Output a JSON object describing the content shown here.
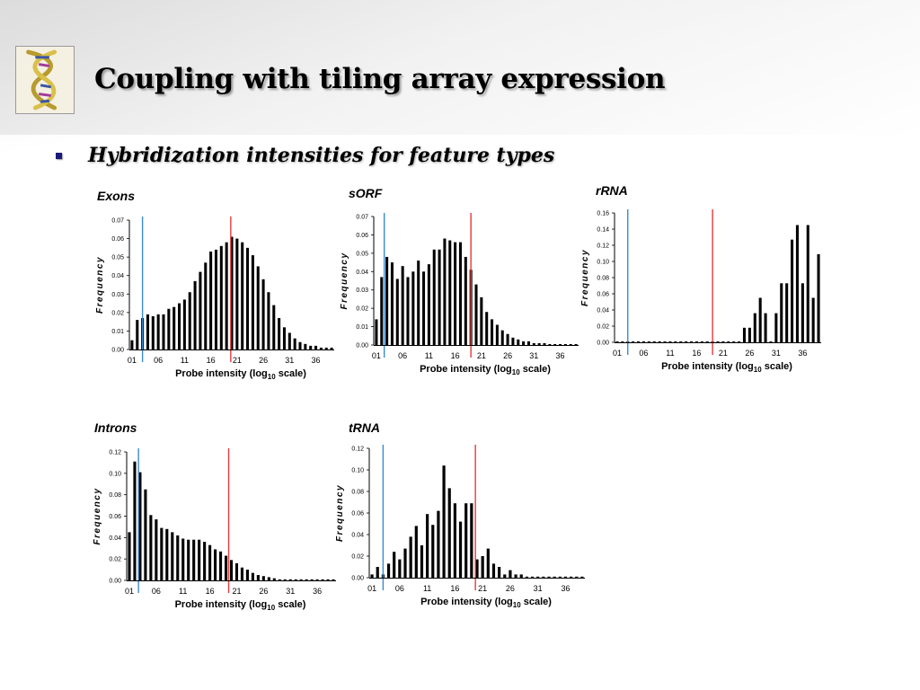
{
  "slide": {
    "title": "Coupling with tiling array expression",
    "bullet": "Hybridization intensities for feature types"
  },
  "colors": {
    "bars": "#000000",
    "blue_line": "#3a8ccf",
    "red_line": "#e53a3a",
    "bullet": "#1a1a7a"
  },
  "chart_data": [
    {
      "type": "bar",
      "title": "Exons",
      "xlabel": "Probe intensity (log10 scale)",
      "ylabel": "Frequency",
      "x_ticks": [
        "01",
        "06",
        "11",
        "16",
        "21",
        "26",
        "31",
        "36"
      ],
      "y_ticks": [
        "0.00",
        "0.01",
        "0.02",
        "0.03",
        "0.04",
        "0.05",
        "0.06",
        "0.07"
      ],
      "ylim": [
        0,
        0.07
      ],
      "blue_line_x": 3.0,
      "red_line_x": 19.8,
      "x": [
        1,
        2,
        3,
        4,
        5,
        6,
        7,
        8,
        9,
        10,
        11,
        12,
        13,
        14,
        15,
        16,
        17,
        18,
        19,
        20,
        21,
        22,
        23,
        24,
        25,
        26,
        27,
        28,
        29,
        30,
        31,
        32,
        33,
        34,
        35,
        36,
        37,
        38,
        39
      ],
      "values": [
        0.005,
        0.016,
        0.017,
        0.019,
        0.018,
        0.019,
        0.019,
        0.022,
        0.023,
        0.025,
        0.027,
        0.031,
        0.037,
        0.042,
        0.047,
        0.053,
        0.054,
        0.056,
        0.058,
        0.061,
        0.06,
        0.058,
        0.055,
        0.051,
        0.045,
        0.038,
        0.031,
        0.024,
        0.017,
        0.012,
        0.009,
        0.006,
        0.004,
        0.003,
        0.002,
        0.002,
        0.001,
        0.001,
        0.001
      ]
    },
    {
      "type": "bar",
      "title": "sORF",
      "xlabel": "Probe intensity (log10 scale)",
      "ylabel": "Frequency",
      "x_ticks": [
        "01",
        "06",
        "11",
        "16",
        "21",
        "26",
        "31",
        "36"
      ],
      "y_ticks": [
        "0.00",
        "0.01",
        "0.02",
        "0.03",
        "0.04",
        "0.05",
        "0.06",
        "0.07"
      ],
      "ylim": [
        0,
        0.07
      ],
      "blue_line_x": 2.5,
      "red_line_x": 19.0,
      "x": [
        1,
        2,
        3,
        4,
        5,
        6,
        7,
        8,
        9,
        10,
        11,
        12,
        13,
        14,
        15,
        16,
        17,
        18,
        19,
        20,
        21,
        22,
        23,
        24,
        25,
        26,
        27,
        28,
        29,
        30,
        31,
        32,
        33,
        34,
        35,
        36,
        37,
        38,
        39
      ],
      "values": [
        0.014,
        0.037,
        0.048,
        0.045,
        0.036,
        0.043,
        0.037,
        0.04,
        0.046,
        0.04,
        0.044,
        0.052,
        0.052,
        0.058,
        0.057,
        0.056,
        0.056,
        0.048,
        0.041,
        0.033,
        0.026,
        0.018,
        0.014,
        0.011,
        0.008,
        0.006,
        0.004,
        0.003,
        0.002,
        0.002,
        0.001,
        0.001,
        0.001,
        0.0005,
        0.0005,
        0.0005,
        0.0005,
        0.0005,
        0.0005
      ]
    },
    {
      "type": "bar",
      "title": "rRNA",
      "xlabel": "Probe intensity (log10 scale)",
      "ylabel": "Frequency",
      "x_ticks": [
        "01",
        "06",
        "11",
        "16",
        "21",
        "26",
        "31",
        "36"
      ],
      "y_ticks": [
        "0.00",
        "0.02",
        "0.04",
        "0.06",
        "0.08",
        "0.10",
        "0.12",
        "0.14",
        "0.16"
      ],
      "ylim": [
        0,
        0.16
      ],
      "blue_line_x": 3.0,
      "red_line_x": 19.0,
      "x": [
        1,
        2,
        3,
        4,
        5,
        6,
        7,
        8,
        9,
        10,
        11,
        12,
        13,
        14,
        15,
        16,
        17,
        18,
        19,
        20,
        21,
        22,
        23,
        24,
        25,
        26,
        27,
        28,
        29,
        30,
        31,
        32,
        33,
        34,
        35,
        36,
        37,
        38,
        39
      ],
      "values": [
        0.001,
        0.001,
        0.001,
        0.001,
        0.001,
        0.001,
        0.001,
        0.001,
        0.001,
        0.001,
        0.001,
        0.001,
        0.001,
        0.001,
        0.001,
        0.001,
        0.001,
        0.001,
        0.001,
        0.001,
        0.001,
        0.001,
        0.001,
        0.001,
        0.018,
        0.018,
        0.036,
        0.055,
        0.036,
        0.001,
        0.036,
        0.073,
        0.073,
        0.127,
        0.145,
        0.073,
        0.145,
        0.055,
        0.109
      ]
    },
    {
      "type": "bar",
      "title": "Introns",
      "xlabel": "Probe intensity (log10 scale)",
      "ylabel": "Frequency",
      "x_ticks": [
        "01",
        "06",
        "11",
        "16",
        "21",
        "26",
        "31",
        "36"
      ],
      "y_ticks": [
        "0.00",
        "0.02",
        "0.04",
        "0.06",
        "0.08",
        "0.10",
        "0.12"
      ],
      "ylim": [
        0,
        0.12
      ],
      "blue_line_x": 2.7,
      "red_line_x": 19.5,
      "x": [
        1,
        2,
        3,
        4,
        5,
        6,
        7,
        8,
        9,
        10,
        11,
        12,
        13,
        14,
        15,
        16,
        17,
        18,
        19,
        20,
        21,
        22,
        23,
        24,
        25,
        26,
        27,
        28,
        29,
        30,
        31,
        32,
        33,
        34,
        35,
        36,
        37,
        38,
        39
      ],
      "values": [
        0.045,
        0.111,
        0.101,
        0.085,
        0.061,
        0.057,
        0.049,
        0.048,
        0.045,
        0.042,
        0.039,
        0.038,
        0.038,
        0.038,
        0.036,
        0.033,
        0.029,
        0.027,
        0.023,
        0.019,
        0.016,
        0.012,
        0.01,
        0.007,
        0.005,
        0.004,
        0.003,
        0.002,
        0.001,
        0.001,
        0.001,
        0.001,
        0.001,
        0.001,
        0.001,
        0.001,
        0.001,
        0.001,
        0.001
      ]
    },
    {
      "type": "bar",
      "title": "tRNA",
      "xlabel": "Probe intensity (log10 scale)",
      "ylabel": "Frequency",
      "x_ticks": [
        "01",
        "06",
        "11",
        "16",
        "21",
        "26",
        "31",
        "36"
      ],
      "y_ticks": [
        "0.00",
        "0.02",
        "0.04",
        "0.06",
        "0.08",
        "0.10",
        "0.12"
      ],
      "ylim": [
        0,
        0.12
      ],
      "blue_line_x": 3.0,
      "red_line_x": 19.7,
      "x": [
        1,
        2,
        3,
        4,
        5,
        6,
        7,
        8,
        9,
        10,
        11,
        12,
        13,
        14,
        15,
        16,
        17,
        18,
        19,
        20,
        21,
        22,
        23,
        24,
        25,
        26,
        27,
        28,
        29,
        30,
        31,
        32,
        33,
        34,
        35,
        36,
        37,
        38,
        39
      ],
      "values": [
        0.003,
        0.01,
        0.003,
        0.013,
        0.024,
        0.017,
        0.027,
        0.038,
        0.048,
        0.03,
        0.059,
        0.049,
        0.062,
        0.104,
        0.083,
        0.069,
        0.052,
        0.069,
        0.069,
        0.017,
        0.02,
        0.027,
        0.013,
        0.01,
        0.003,
        0.007,
        0.003,
        0.003,
        0.001,
        0.001,
        0.001,
        0.001,
        0.001,
        0.001,
        0.001,
        0.001,
        0.001,
        0.001,
        0.001
      ]
    }
  ]
}
